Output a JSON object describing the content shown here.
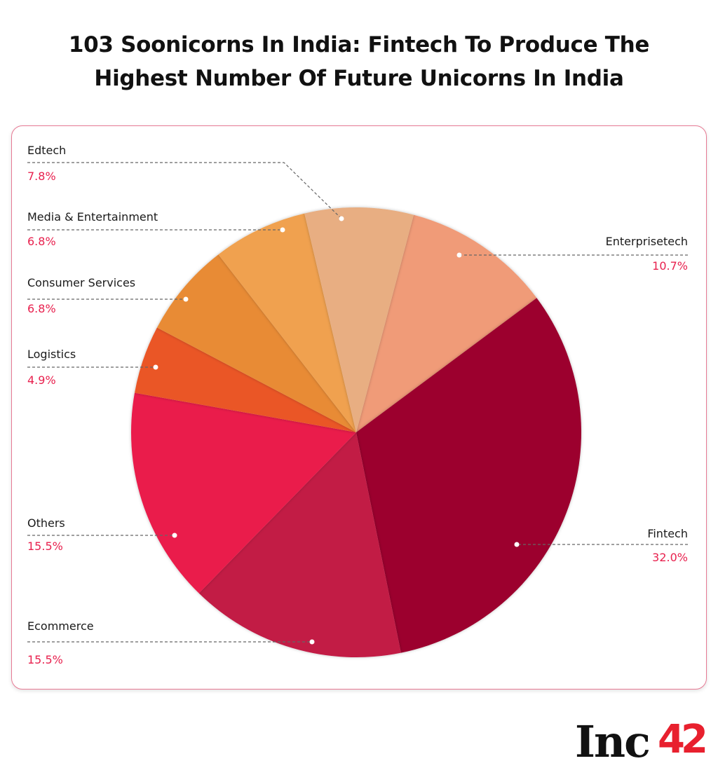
{
  "chart_data": {
    "type": "pie",
    "title": "103 Soonicorns In India: Fintech To Produce The Highest Number Of Future Unicorns In India",
    "title_lines": [
      "103 Soonicorns In India: Fintech To Produce The",
      "Highest Number Of Future Unicorns In India"
    ],
    "unit": "%",
    "slices": [
      {
        "label": "Enterprisetech",
        "value": 10.7,
        "display": "10.7%",
        "color": "#F09B78"
      },
      {
        "label": "Fintech",
        "value": 32.0,
        "display": "32.0%",
        "color": "#9C062E"
      },
      {
        "label": "Ecommerce",
        "value": 15.5,
        "display": "15.5%",
        "color": "#C21A45"
      },
      {
        "label": "Others",
        "value": 15.5,
        "display": "15.5%",
        "color": "#EA1F4C"
      },
      {
        "label": "Logistics",
        "value": 4.9,
        "display": "4.9%",
        "color": "#EA5628"
      },
      {
        "label": "Consumer Services",
        "value": 6.8,
        "display": "6.8%",
        "color": "#E88B36"
      },
      {
        "label": "Media & Entertainment",
        "value": 6.8,
        "display": "6.8%",
        "color": "#F0A14F"
      },
      {
        "label": "Edtech",
        "value": 7.8,
        "display": "7.8%",
        "color": "#E8AE82"
      }
    ],
    "legend": "callout labels",
    "label_color": "#E8214E"
  },
  "brand": {
    "logo_text": "Inc42",
    "logo_colors": [
      "#111111",
      "#E8202E"
    ]
  }
}
